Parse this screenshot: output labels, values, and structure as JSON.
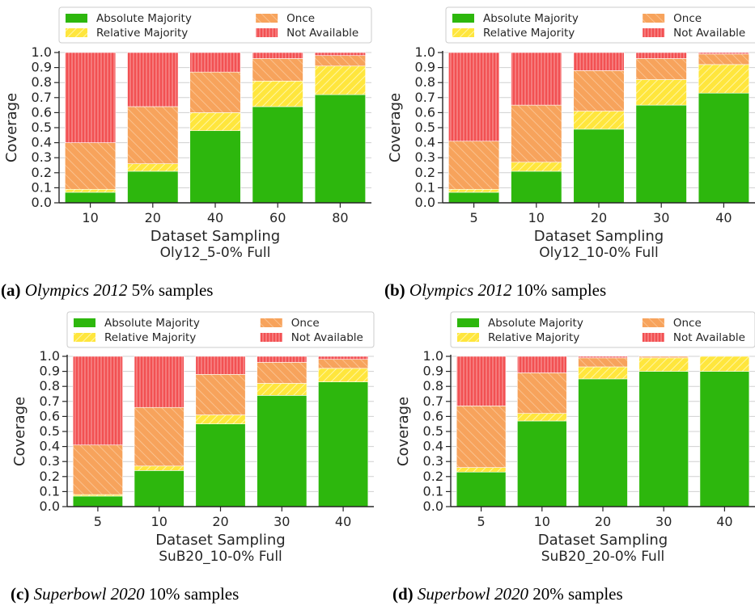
{
  "legend_entries": [
    {
      "key": "absolute",
      "label": "Absolute Majority"
    },
    {
      "key": "relative",
      "label": "Relative Majority"
    },
    {
      "key": "once",
      "label": "Once"
    },
    {
      "key": "na",
      "label": "Not Available"
    }
  ],
  "colors": {
    "absolute": "#2db70d",
    "relative": "#ffe63d",
    "once": "#f7a35c",
    "na": "#f25052"
  },
  "chart_data": [
    {
      "type": "bar",
      "stacked": true,
      "ylabel": "Coverage",
      "xlabel": "Dataset Sampling",
      "subtitle": "Oly12_5-0% Full",
      "caption_label": "(a)",
      "caption_italic": "Olympics 2012",
      "caption_rest": " 5% samples",
      "ylim": [
        0,
        1.0
      ],
      "yticks": [
        "0.0",
        "0.1",
        "0.2",
        "0.3",
        "0.4",
        "0.5",
        "0.6",
        "0.7",
        "0.8",
        "0.9",
        "1.0"
      ],
      "categories": [
        "10",
        "20",
        "40",
        "60",
        "80"
      ],
      "series": [
        {
          "name": "Absolute Majority",
          "key": "absolute",
          "values": [
            0.07,
            0.21,
            0.48,
            0.64,
            0.72
          ]
        },
        {
          "name": "Relative Majority",
          "key": "relative",
          "values": [
            0.02,
            0.05,
            0.12,
            0.17,
            0.19
          ]
        },
        {
          "name": "Once",
          "key": "once",
          "values": [
            0.31,
            0.38,
            0.27,
            0.15,
            0.07
          ]
        },
        {
          "name": "Not Available",
          "key": "na",
          "values": [
            0.6,
            0.36,
            0.13,
            0.04,
            0.02
          ]
        }
      ]
    },
    {
      "type": "bar",
      "stacked": true,
      "ylabel": "Coverage",
      "xlabel": "Dataset Sampling",
      "subtitle": "Oly12_10-0% Full",
      "caption_label": "(b)",
      "caption_italic": "Olympics 2012",
      "caption_rest": " 10% samples",
      "ylim": [
        0,
        1.0
      ],
      "yticks": [
        "0.0",
        "0.1",
        "0.2",
        "0.3",
        "0.4",
        "0.5",
        "0.6",
        "0.7",
        "0.8",
        "0.9",
        "1.0"
      ],
      "categories": [
        "5",
        "10",
        "20",
        "30",
        "40"
      ],
      "series": [
        {
          "name": "Absolute Majority",
          "key": "absolute",
          "values": [
            0.07,
            0.21,
            0.49,
            0.65,
            0.73
          ]
        },
        {
          "name": "Relative Majority",
          "key": "relative",
          "values": [
            0.02,
            0.06,
            0.12,
            0.17,
            0.19
          ]
        },
        {
          "name": "Once",
          "key": "once",
          "values": [
            0.32,
            0.38,
            0.27,
            0.14,
            0.07
          ]
        },
        {
          "name": "Not Available",
          "key": "na",
          "values": [
            0.59,
            0.35,
            0.12,
            0.04,
            0.01
          ]
        }
      ]
    },
    {
      "type": "bar",
      "stacked": true,
      "ylabel": "Coverage",
      "xlabel": "Dataset Sampling",
      "subtitle": "SuB20_10-0% Full",
      "caption_label": "(c)",
      "caption_italic": "Superbowl 2020",
      "caption_rest": " 10% samples",
      "ylim": [
        0,
        1.0
      ],
      "yticks": [
        "0.0",
        "0.1",
        "0.2",
        "0.3",
        "0.4",
        "0.5",
        "0.6",
        "0.7",
        "0.8",
        "0.9",
        "1.0"
      ],
      "categories": [
        "5",
        "10",
        "20",
        "30",
        "40"
      ],
      "series": [
        {
          "name": "Absolute Majority",
          "key": "absolute",
          "values": [
            0.07,
            0.24,
            0.55,
            0.74,
            0.83
          ]
        },
        {
          "name": "Relative Majority",
          "key": "relative",
          "values": [
            0.01,
            0.03,
            0.06,
            0.08,
            0.09
          ]
        },
        {
          "name": "Once",
          "key": "once",
          "values": [
            0.33,
            0.39,
            0.27,
            0.14,
            0.06
          ]
        },
        {
          "name": "Not Available",
          "key": "na",
          "values": [
            0.59,
            0.34,
            0.12,
            0.04,
            0.02
          ]
        }
      ]
    },
    {
      "type": "bar",
      "stacked": true,
      "ylabel": "Coverage",
      "xlabel": "Dataset Sampling",
      "subtitle": "SuB20_20-0% Full",
      "caption_label": "(d)",
      "caption_italic": "Superbowl 2020",
      "caption_rest": " 20% samples",
      "ylim": [
        0,
        1.0
      ],
      "yticks": [
        "0.0",
        "0.1",
        "0.2",
        "0.3",
        "0.4",
        "0.5",
        "0.6",
        "0.7",
        "0.8",
        "0.9",
        "1.0"
      ],
      "categories": [
        "5",
        "10",
        "20",
        "30",
        "40"
      ],
      "series": [
        {
          "name": "Absolute Majority",
          "key": "absolute",
          "values": [
            0.23,
            0.57,
            0.85,
            0.9,
            0.9
          ]
        },
        {
          "name": "Relative Majority",
          "key": "relative",
          "values": [
            0.03,
            0.05,
            0.08,
            0.09,
            0.1
          ]
        },
        {
          "name": "Once",
          "key": "once",
          "values": [
            0.41,
            0.27,
            0.06,
            0.01,
            0.0
          ]
        },
        {
          "name": "Not Available",
          "key": "na",
          "values": [
            0.33,
            0.11,
            0.01,
            0.0,
            0.0
          ]
        }
      ]
    }
  ]
}
